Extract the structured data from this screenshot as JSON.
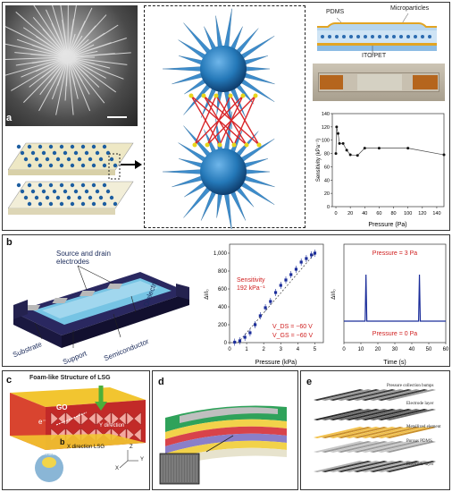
{
  "panel_a": {
    "label": "a",
    "schematic": {
      "pdms": "PDMS",
      "microparticles": "Microparticles",
      "ito_pet": "ITO/PET"
    },
    "chart": {
      "ylabel": "Sensitivity (kPa⁻¹)",
      "xlabel": "Pressure (Pa)",
      "xticks": [
        "0",
        "20",
        "40",
        "60",
        "80",
        "100",
        "120",
        "140"
      ],
      "yticks": [
        "0",
        "20",
        "40",
        "60",
        "80",
        "100",
        "120",
        "140"
      ]
    }
  },
  "panel_b": {
    "label": "b",
    "device": {
      "source_drain": "Source and drain\nelectrodes",
      "dielectric": "Dielectric",
      "semiconductor": "Semiconductor",
      "support": "Support",
      "substrate": "Substrate"
    },
    "chart1": {
      "ylabel": "ΔI/I₀",
      "xlabel": "Pressure (kPa)",
      "sensitivity_label": "Sensitivity",
      "sensitivity_value": "192 kPa⁻¹",
      "vds": "V_DS = −60 V",
      "vgs": "V_GS = −60 V",
      "xticks": [
        "0",
        "1",
        "2",
        "3",
        "4",
        "5"
      ],
      "yticks": [
        "0",
        "200",
        "400",
        "600",
        "800",
        "1,000",
        "1,200"
      ]
    },
    "chart2": {
      "ylabel": "ΔI/I₀",
      "xlabel": "Time (s)",
      "pressure_high": "Pressure = 3 Pa",
      "pressure_low": "Pressure = 0 Pa",
      "xticks": [
        "0",
        "10",
        "20",
        "30",
        "40",
        "50",
        "60"
      ]
    }
  },
  "panel_c": {
    "label": "c",
    "title": "Foam-like Structure of LSG",
    "go": "GO",
    "electron": "e⁻",
    "y_direction": "Y direction",
    "x_direction": "X direction LSG",
    "b_mark": "b",
    "sensor_label": "LSG Pressure Sensor",
    "axes": [
      "Z",
      "Y",
      "X"
    ]
  },
  "panel_d": {
    "label": "d"
  },
  "panel_e": {
    "label": "e",
    "bumps": "Pressure collection bumps",
    "electrode_top": "Electrode layer",
    "metallized": "Metallized element",
    "porous": "Porous PDMS",
    "electrode_bottom": "Electrode layer"
  },
  "chart_data": [
    {
      "type": "scatter",
      "title": "",
      "xlabel": "Pressure (Pa)",
      "ylabel": "Sensitivity (kPa⁻¹)",
      "xlim": [
        -5,
        150
      ],
      "ylim": [
        0,
        140
      ],
      "x": [
        0,
        1,
        3,
        5,
        10,
        15,
        20,
        30,
        40,
        60,
        100,
        150
      ],
      "y": [
        80,
        120,
        110,
        95,
        95,
        85,
        78,
        77,
        88,
        88,
        88,
        78
      ]
    },
    {
      "type": "scatter",
      "title": "",
      "xlabel": "Pressure (kPa)",
      "ylabel": "ΔI/I₀",
      "xlim": [
        0,
        5.5
      ],
      "ylim": [
        0,
        1100
      ],
      "x": [
        0.3,
        0.6,
        0.9,
        1.2,
        1.5,
        1.8,
        2.1,
        2.4,
        2.7,
        3.0,
        3.3,
        3.6,
        3.9,
        4.2,
        4.5,
        4.8,
        5.0
      ],
      "y": [
        5,
        20,
        60,
        110,
        200,
        300,
        390,
        460,
        560,
        640,
        700,
        760,
        820,
        900,
        940,
        980,
        1000
      ]
    },
    {
      "type": "line",
      "title": "",
      "xlabel": "Time (s)",
      "ylabel": "ΔI/I₀",
      "xlim": [
        0,
        60
      ],
      "x": [
        0,
        12.5,
        13,
        13.5,
        44,
        44.5,
        45,
        60
      ],
      "y": [
        0,
        0,
        1,
        0,
        0,
        1,
        0,
        0
      ]
    }
  ]
}
